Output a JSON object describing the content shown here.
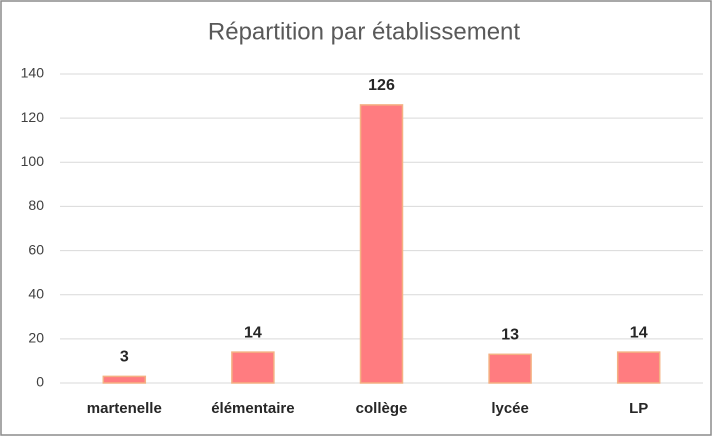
{
  "chart_data": {
    "type": "bar",
    "title": "Répartition par établissement",
    "categories": [
      "martenelle",
      "élémentaire",
      "collège",
      "lycée",
      "LP"
    ],
    "values": [
      3,
      14,
      126,
      13,
      14
    ],
    "color": "#ff7c80",
    "edge_color": "#f4b183",
    "ylim": [
      0,
      140
    ],
    "yticks": [
      0,
      20,
      40,
      60,
      80,
      100,
      120,
      140
    ],
    "grid": true,
    "data_labels": true
  }
}
